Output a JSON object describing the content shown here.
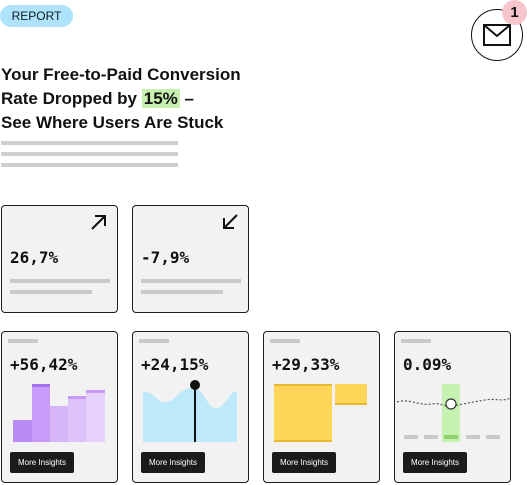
{
  "badge": "REPORT",
  "notification_count": "1",
  "headline": {
    "line1": "Your Free-to-Paid Conversion",
    "line2_prefix": "Rate Dropped by ",
    "line2_highlight": "15%",
    "line2_suffix": " –",
    "line3": "See Where Users Are Stuck"
  },
  "colors": {
    "badge_bg": "#aee3fb",
    "highlight": "#c8f0b0",
    "notif_bg": "#f7c6cc"
  },
  "kpis": [
    {
      "value": "26,7%",
      "icon": "arrow-up-right-icon"
    },
    {
      "value": "-7,9%",
      "icon": "arrow-down-left-icon"
    }
  ],
  "insights": [
    {
      "value": "+56,42%",
      "button": "More Insights",
      "chart": "bar"
    },
    {
      "value": "+24,15%",
      "button": "More Insights",
      "chart": "area"
    },
    {
      "value": "+29,33%",
      "button": "More Insights",
      "chart": "block"
    },
    {
      "value": "0.09%",
      "button": "More Insights",
      "chart": "line"
    }
  ]
}
